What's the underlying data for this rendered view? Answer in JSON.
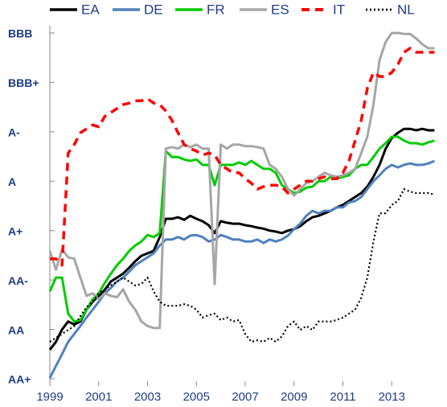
{
  "chart_data": {
    "type": "line",
    "x": [
      1999,
      1999.25,
      1999.5,
      1999.75,
      2000,
      2000.25,
      2000.5,
      2000.75,
      2001,
      2001.25,
      2001.5,
      2001.75,
      2002,
      2002.25,
      2002.5,
      2002.75,
      2003,
      2003.25,
      2003.5,
      2003.75,
      2004,
      2004.25,
      2004.5,
      2004.75,
      2005,
      2005.25,
      2005.5,
      2005.75,
      2006,
      2006.25,
      2006.5,
      2006.75,
      2007,
      2007.25,
      2007.5,
      2007.75,
      2008,
      2008.25,
      2008.5,
      2008.75,
      2009,
      2009.25,
      2009.5,
      2009.75,
      2010,
      2010.25,
      2010.5,
      2010.75,
      2011,
      2011.25,
      2011.5,
      2011.75,
      2012,
      2012.25,
      2012.5,
      2012.75,
      2013,
      2013.25,
      2013.5,
      2013.75,
      2014,
      2014.25,
      2014.5,
      2014.75
    ],
    "series": [
      {
        "name": "EA",
        "color": "#000000",
        "dash": "solid",
        "values": [
          0.59,
          0.75,
          1.0,
          1.16,
          1.1,
          1.16,
          1.4,
          1.56,
          1.68,
          1.8,
          1.97,
          2.05,
          2.13,
          2.25,
          2.38,
          2.49,
          2.54,
          2.59,
          2.87,
          3.24,
          3.24,
          3.27,
          3.22,
          3.3,
          3.24,
          3.19,
          3.11,
          2.95,
          3.19,
          3.16,
          3.14,
          3.14,
          3.11,
          3.09,
          3.06,
          3.04,
          3.0,
          2.98,
          2.95,
          3.0,
          3.03,
          3.09,
          3.19,
          3.27,
          3.3,
          3.35,
          3.4,
          3.47,
          3.52,
          3.6,
          3.68,
          3.76,
          3.89,
          4.09,
          4.33,
          4.66,
          4.87,
          4.98,
          5.06,
          5.06,
          5.03,
          5.06,
          5.03,
          5.03
        ]
      },
      {
        "name": "DE",
        "color": "#4f81bd",
        "dash": "solid",
        "values": [
          0.02,
          0.26,
          0.5,
          0.75,
          0.91,
          1.07,
          1.24,
          1.4,
          1.56,
          1.73,
          1.84,
          1.97,
          2.05,
          2.17,
          2.3,
          2.38,
          2.46,
          2.54,
          2.7,
          2.82,
          2.82,
          2.87,
          2.82,
          2.9,
          2.91,
          2.87,
          2.78,
          2.82,
          2.91,
          2.87,
          2.82,
          2.82,
          2.78,
          2.78,
          2.82,
          2.75,
          2.82,
          2.78,
          2.82,
          2.9,
          3.03,
          3.14,
          3.3,
          3.4,
          3.35,
          3.4,
          3.4,
          3.47,
          3.47,
          3.57,
          3.6,
          3.68,
          3.84,
          4.0,
          4.12,
          4.25,
          4.33,
          4.28,
          4.33,
          4.36,
          4.33,
          4.33,
          4.36,
          4.41
        ]
      },
      {
        "name": "FR",
        "color": "#00cc00",
        "dash": "solid",
        "values": [
          1.77,
          2.05,
          2.05,
          1.32,
          1.16,
          1.19,
          1.4,
          1.61,
          1.73,
          1.94,
          2.13,
          2.3,
          2.43,
          2.59,
          2.7,
          2.78,
          2.91,
          2.87,
          2.95,
          4.61,
          4.49,
          4.49,
          4.44,
          4.41,
          4.44,
          4.33,
          4.33,
          3.92,
          4.33,
          4.33,
          4.33,
          4.38,
          4.33,
          4.41,
          4.33,
          4.25,
          4.25,
          4.17,
          3.92,
          3.84,
          3.76,
          3.79,
          3.87,
          3.89,
          4.0,
          4.0,
          4.09,
          4.05,
          4.09,
          4.12,
          4.25,
          4.33,
          4.33,
          4.49,
          4.66,
          4.77,
          4.9,
          4.9,
          4.82,
          4.77,
          4.77,
          4.74,
          4.79,
          4.82
        ]
      },
      {
        "name": "ES",
        "color": "#a6a6a6",
        "dash": "solid",
        "values": [
          2.59,
          2.21,
          2.62,
          2.46,
          2.43,
          2.05,
          1.68,
          1.73,
          1.61,
          1.73,
          1.68,
          1.65,
          1.81,
          1.56,
          1.4,
          1.16,
          1.07,
          1.03,
          1.03,
          4.66,
          4.69,
          4.66,
          4.74,
          4.69,
          4.74,
          4.66,
          4.66,
          1.92,
          4.74,
          4.66,
          4.74,
          4.74,
          4.71,
          4.71,
          4.69,
          4.66,
          4.33,
          4.25,
          4.09,
          3.84,
          3.71,
          3.84,
          3.96,
          4.0,
          4.09,
          4.17,
          4.12,
          4.09,
          4.12,
          4.17,
          4.25,
          4.57,
          4.9,
          5.55,
          6.45,
          6.82,
          7.0,
          7.0,
          6.98,
          6.98,
          6.89,
          6.77,
          6.69,
          6.69
        ]
      },
      {
        "name": "IT",
        "color": "#ff0000",
        "dash": "dashed",
        "values": [
          2.43,
          2.43,
          2.3,
          4.57,
          4.74,
          4.98,
          5.06,
          5.14,
          5.1,
          5.31,
          5.39,
          5.47,
          5.55,
          5.58,
          5.63,
          5.63,
          5.67,
          5.58,
          5.55,
          5.42,
          5.23,
          4.98,
          4.74,
          4.66,
          4.61,
          4.53,
          4.57,
          4.53,
          4.33,
          4.25,
          4.17,
          4.17,
          4.05,
          3.96,
          3.84,
          3.89,
          3.92,
          3.92,
          3.89,
          3.76,
          3.84,
          3.92,
          4.0,
          4.0,
          4.05,
          4.09,
          4.05,
          4.05,
          4.17,
          4.41,
          4.82,
          5.23,
          5.88,
          6.2,
          6.12,
          6.12,
          6.2,
          6.36,
          6.61,
          6.69,
          6.61,
          6.61,
          6.61,
          6.61
        ]
      },
      {
        "name": "NL",
        "color": "#000000",
        "dash": "dotted",
        "values": [
          0.75,
          0.83,
          0.91,
          0.99,
          1.07,
          1.27,
          1.45,
          1.56,
          1.73,
          1.81,
          1.89,
          1.97,
          2.05,
          1.97,
          1.89,
          1.92,
          2.05,
          1.77,
          1.56,
          1.48,
          1.48,
          1.48,
          1.51,
          1.48,
          1.4,
          1.24,
          1.29,
          1.32,
          1.19,
          1.24,
          1.16,
          1.19,
          0.91,
          0.75,
          0.78,
          0.75,
          0.83,
          0.75,
          0.86,
          1.07,
          1.16,
          0.99,
          1.07,
          0.99,
          1.16,
          1.16,
          1.16,
          1.19,
          1.24,
          1.32,
          1.4,
          1.64,
          2.05,
          2.78,
          3.35,
          3.35,
          3.52,
          3.6,
          3.84,
          3.79,
          3.76,
          3.76,
          3.76,
          3.73
        ]
      }
    ],
    "xlim": [
      1999,
      2014.9
    ],
    "xticks": [
      1999,
      2001,
      2003,
      2005,
      2007,
      2009,
      2011,
      2013
    ],
    "ylim": [
      0,
      7
    ],
    "yticks": [
      {
        "value": 0,
        "label": "AA+"
      },
      {
        "value": 1,
        "label": "AA"
      },
      {
        "value": 2,
        "label": "AA-"
      },
      {
        "value": 3,
        "label": "A+"
      },
      {
        "value": 4,
        "label": "A"
      },
      {
        "value": 5,
        "label": "A-"
      },
      {
        "value": 6,
        "label": "BBB+"
      },
      {
        "value": 7,
        "label": "BBB"
      }
    ],
    "grid": false,
    "legend": "top"
  }
}
